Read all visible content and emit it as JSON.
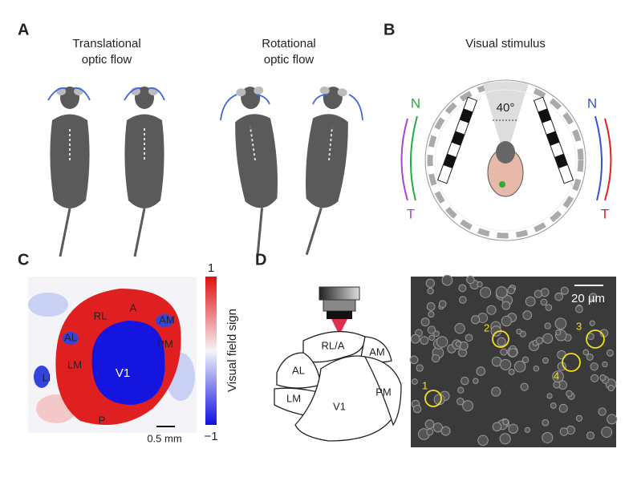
{
  "panels": [
    {
      "label": "A",
      "captions": [
        [
          "Translational",
          "optic flow"
        ],
        [
          "Rotational",
          "optic flow"
        ]
      ]
    },
    {
      "label": "B",
      "title": "Visual stimulus",
      "angle": "40°",
      "left_arrows": [
        "N",
        "T"
      ],
      "right_arrows": [
        "N",
        "T"
      ]
    },
    {
      "label": "C",
      "colorbar": {
        "max": "1",
        "min": "−1",
        "title": "Visual field sign"
      },
      "areas": [
        "RL",
        "A",
        "AM",
        "AL",
        "PM",
        "LM",
        "V1",
        "LI",
        "P"
      ],
      "scale_bar": "0.5 mm"
    },
    {
      "label": "D",
      "areas": [
        "RL/A",
        "AM",
        "AL",
        "LM",
        "V1",
        "PM"
      ],
      "scale_bar": "20 µm",
      "cells": [
        "1",
        "2",
        "3",
        "4"
      ]
    }
  ]
}
